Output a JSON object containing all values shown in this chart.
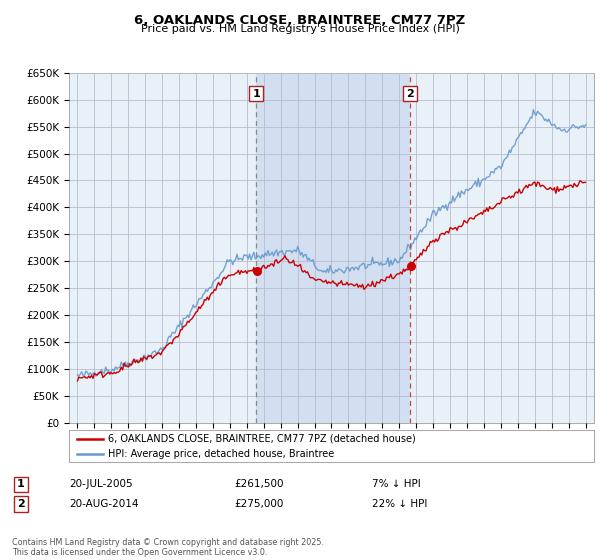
{
  "title": "6, OAKLANDS CLOSE, BRAINTREE, CM77 7PZ",
  "subtitle": "Price paid vs. HM Land Registry's House Price Index (HPI)",
  "legend_line1": "6, OAKLANDS CLOSE, BRAINTREE, CM77 7PZ (detached house)",
  "legend_line2": "HPI: Average price, detached house, Braintree",
  "sale1_date": "20-JUL-2005",
  "sale1_price": "£261,500",
  "sale1_hpi": "7% ↓ HPI",
  "sale2_date": "20-AUG-2014",
  "sale2_price": "£275,000",
  "sale2_hpi": "22% ↓ HPI",
  "footer": "Contains HM Land Registry data © Crown copyright and database right 2025.\nThis data is licensed under the Open Government Licence v3.0.",
  "red_color": "#cc0000",
  "blue_color": "#6699cc",
  "vline1_color": "#888888",
  "vline2_color": "#cc4444",
  "shade_color": "#ddeeff",
  "grid_color": "#cccccc",
  "plot_bg_color": "#e8f0f8",
  "ylim": [
    0,
    650000
  ],
  "xmin": 1994.5,
  "xmax": 2025.5,
  "sale1_year": 2005.55,
  "sale2_year": 2014.63,
  "sale1_price_val": 261500,
  "sale2_price_val": 275000
}
